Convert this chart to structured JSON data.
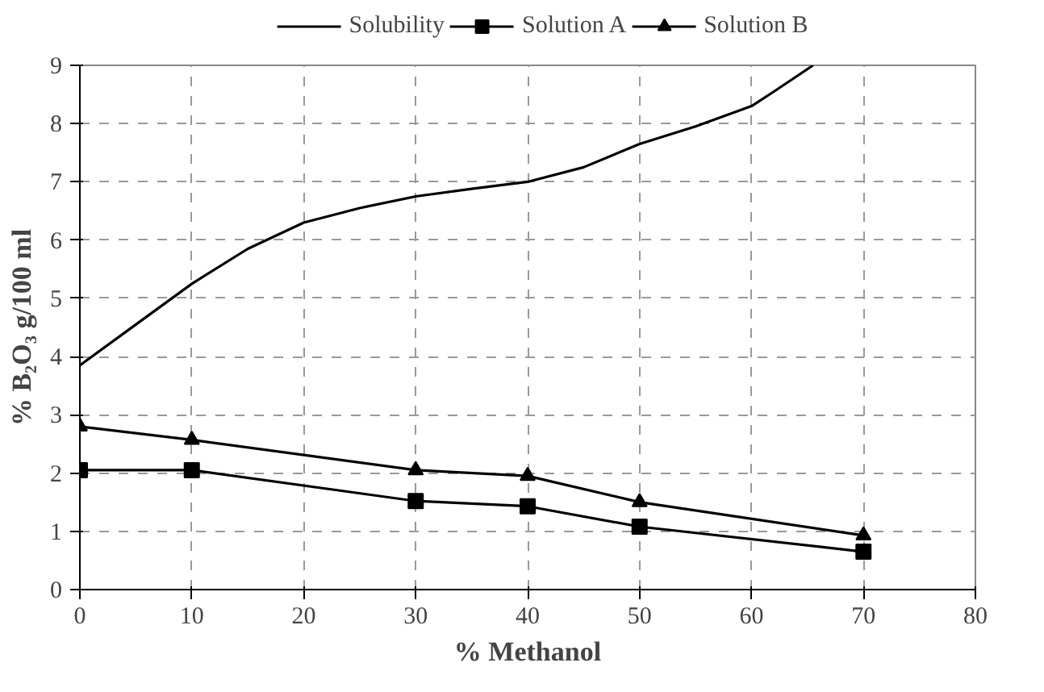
{
  "chart_data": {
    "type": "line",
    "xlabel": "% Methanol",
    "ylabel": "% B₂O₃ g/100 ml",
    "xlim": [
      0,
      80
    ],
    "ylim": [
      0,
      9
    ],
    "xticks": [
      0,
      10,
      20,
      30,
      40,
      50,
      60,
      70,
      80
    ],
    "yticks": [
      0,
      1,
      2,
      3,
      4,
      5,
      6,
      7,
      8,
      9
    ],
    "grid": true,
    "legend": "top",
    "line_style": "solid",
    "series": [
      {
        "name": "Solubility",
        "color": "#000000",
        "marker": "none",
        "x": [
          0,
          5,
          10,
          15,
          20,
          25,
          30,
          35,
          40,
          45,
          50,
          55,
          60,
          62,
          65.5
        ],
        "values": [
          3.85,
          4.55,
          5.25,
          5.85,
          6.3,
          6.55,
          6.75,
          6.88,
          7.0,
          7.25,
          7.65,
          7.95,
          8.3,
          8.55,
          9.0
        ]
      },
      {
        "name": "Solution A",
        "color": "#000000",
        "marker": "square",
        "x": [
          0,
          10,
          30,
          40,
          50,
          70
        ],
        "values": [
          2.05,
          2.05,
          1.52,
          1.43,
          1.08,
          0.65
        ]
      },
      {
        "name": "Solution B",
        "color": "#000000",
        "marker": "triangle",
        "x": [
          0,
          10,
          30,
          40,
          50,
          70
        ],
        "values": [
          2.8,
          2.57,
          2.05,
          1.95,
          1.5,
          0.93
        ]
      }
    ]
  }
}
